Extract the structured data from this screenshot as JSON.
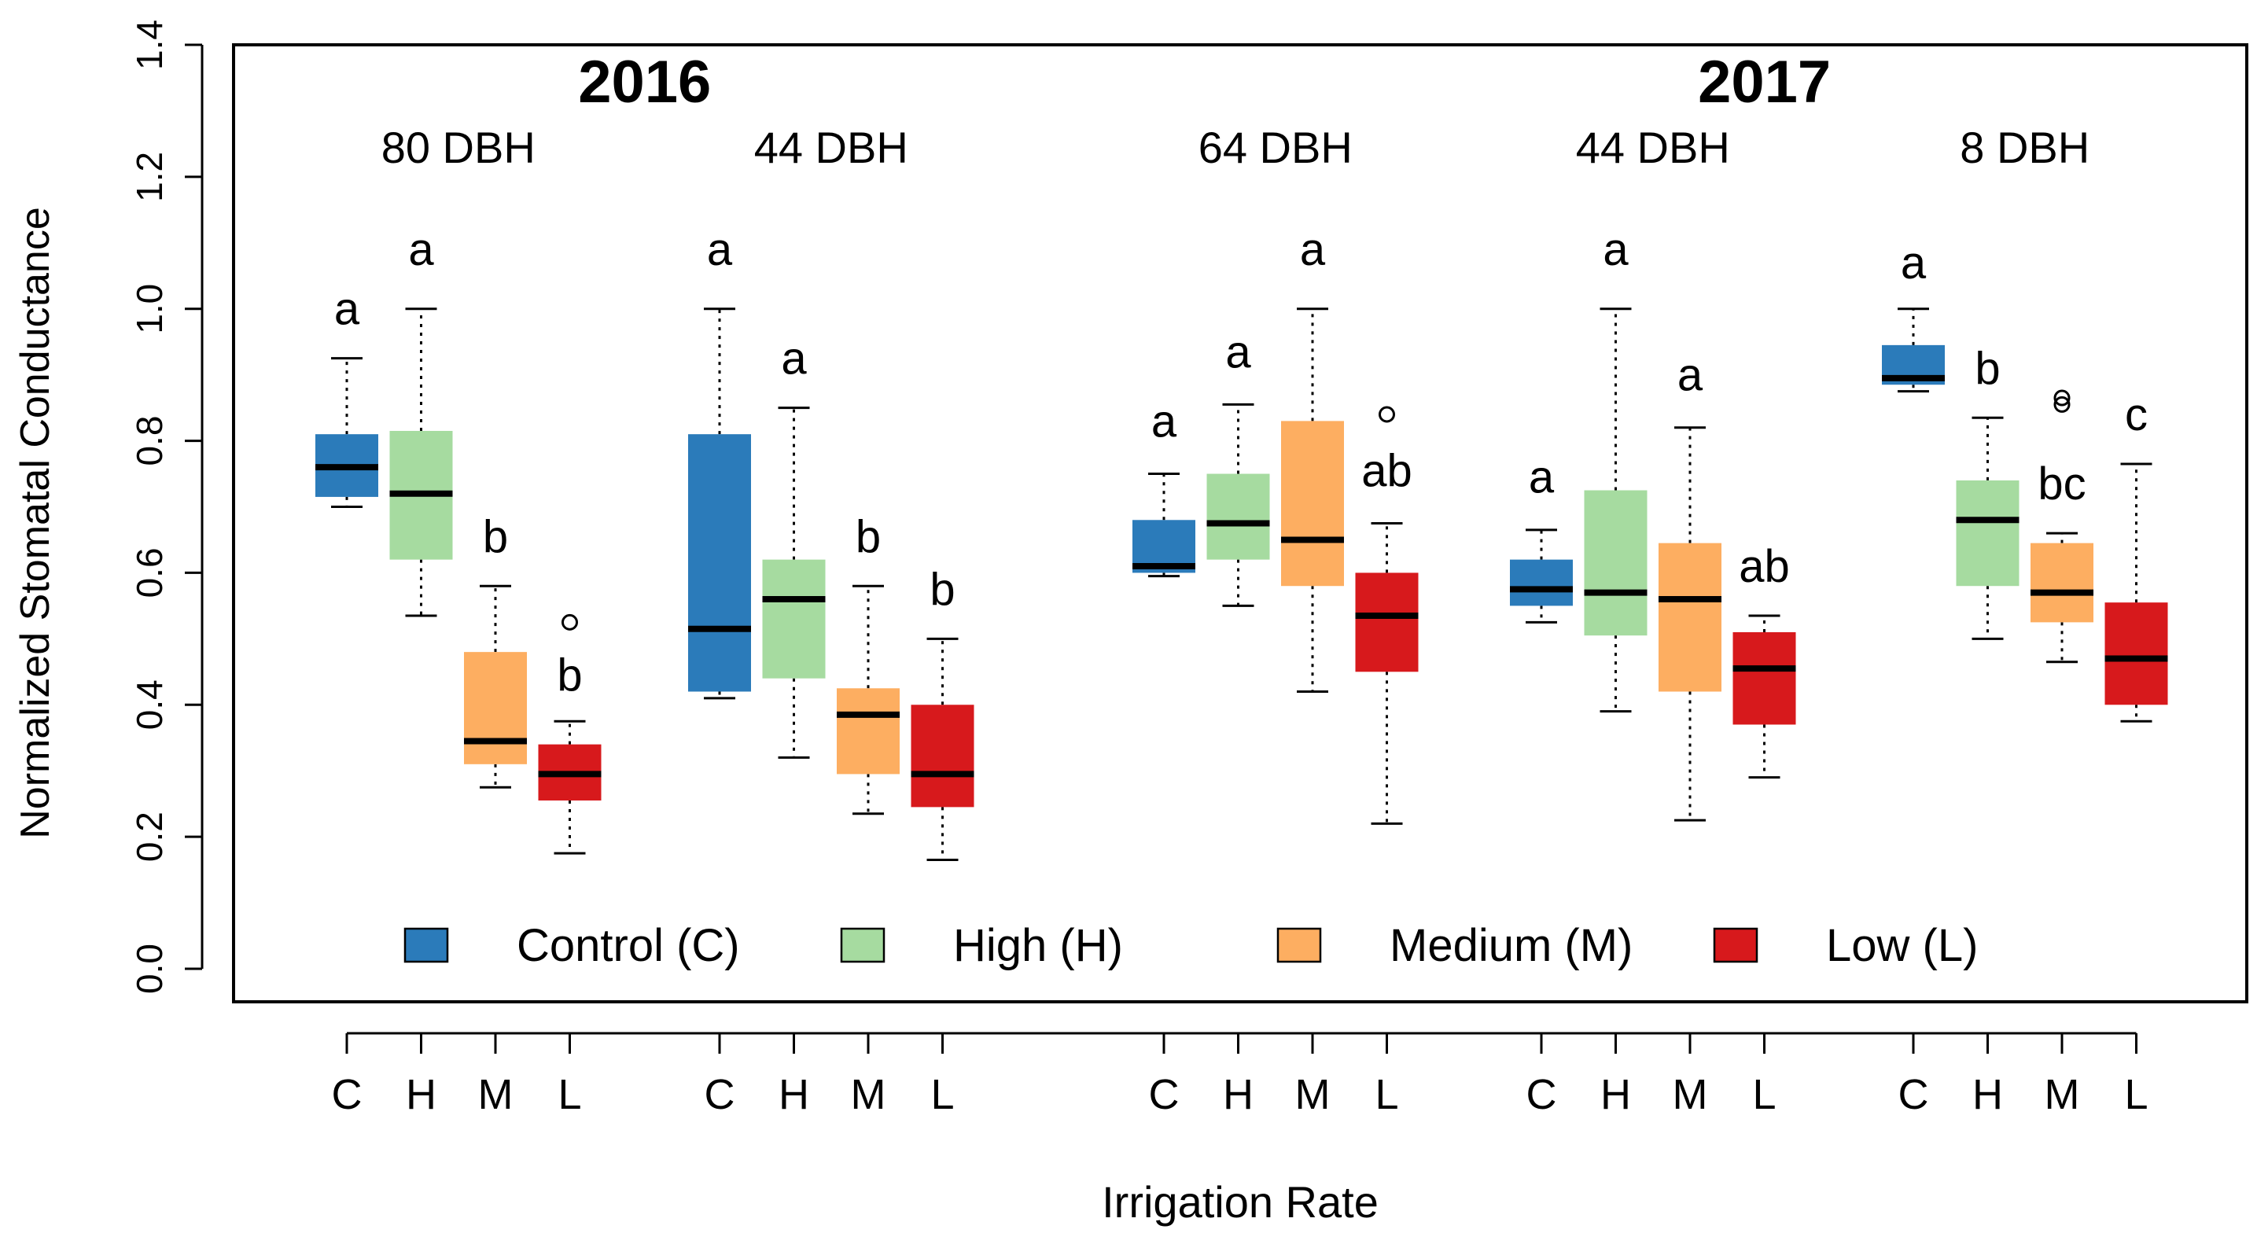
{
  "chart_data": {
    "type": "boxplot",
    "ylabel": "Normalized Stomatal Conductance",
    "xlabel": "Irrigation Rate",
    "ylim": [
      0.0,
      1.4
    ],
    "yticks": [
      "0.0",
      "0.2",
      "0.4",
      "0.6",
      "0.8",
      "1.0",
      "1.2",
      "1.4"
    ],
    "ytick_values": [
      0.0,
      0.2,
      0.4,
      0.6,
      0.8,
      1.0,
      1.2,
      1.4
    ],
    "treatments": [
      {
        "key": "C",
        "name": "Control (C)",
        "color": "#2b7bba"
      },
      {
        "key": "H",
        "name": "High (H)",
        "color": "#a6dba0"
      },
      {
        "key": "M",
        "name": "Medium (M)",
        "color": "#fdae61"
      },
      {
        "key": "L",
        "name": "Low (L)",
        "color": "#d7191c"
      }
    ],
    "years": [
      {
        "label": "2016",
        "center_group": 0.5
      },
      {
        "label": "2017",
        "center_group": 3.3
      }
    ],
    "groups": [
      {
        "label": "80 DBH",
        "year": "2016",
        "boxes": [
          {
            "tick": "C",
            "min": 0.7,
            "q1": 0.715,
            "median": 0.76,
            "q3": 0.81,
            "max": 0.925,
            "outliers": [],
            "letter": "a",
            "letter_y": 1.0
          },
          {
            "tick": "H",
            "min": 0.535,
            "q1": 0.62,
            "median": 0.72,
            "q3": 0.815,
            "max": 1.0,
            "outliers": [],
            "letter": "a",
            "letter_y": 1.09
          },
          {
            "tick": "M",
            "min": 0.275,
            "q1": 0.31,
            "median": 0.345,
            "q3": 0.48,
            "max": 0.58,
            "outliers": [],
            "letter": "b",
            "letter_y": 0.655
          },
          {
            "tick": "L",
            "min": 0.175,
            "q1": 0.255,
            "median": 0.295,
            "q3": 0.34,
            "max": 0.375,
            "outliers": [
              0.525
            ],
            "letter": "b",
            "letter_y": 0.445
          }
        ]
      },
      {
        "label": "44 DBH",
        "year": "2016",
        "boxes": [
          {
            "tick": "C",
            "min": 0.41,
            "q1": 0.42,
            "median": 0.515,
            "q3": 0.81,
            "max": 1.0,
            "outliers": [],
            "letter": "a",
            "letter_y": 1.09
          },
          {
            "tick": "H",
            "min": 0.32,
            "q1": 0.44,
            "median": 0.56,
            "q3": 0.62,
            "max": 0.85,
            "outliers": [],
            "letter": "a",
            "letter_y": 0.925
          },
          {
            "tick": "M",
            "min": 0.235,
            "q1": 0.295,
            "median": 0.385,
            "q3": 0.425,
            "max": 0.58,
            "outliers": [],
            "letter": "b",
            "letter_y": 0.655
          },
          {
            "tick": "L",
            "min": 0.165,
            "q1": 0.245,
            "median": 0.295,
            "q3": 0.4,
            "max": 0.5,
            "outliers": [],
            "letter": "b",
            "letter_y": 0.575
          }
        ]
      },
      {
        "label": "64 DBH",
        "year": "2017",
        "boxes": [
          {
            "tick": "C",
            "min": 0.595,
            "q1": 0.6,
            "median": 0.61,
            "q3": 0.68,
            "max": 0.75,
            "outliers": [],
            "letter": "a",
            "letter_y": 0.83
          },
          {
            "tick": "H",
            "min": 0.55,
            "q1": 0.62,
            "median": 0.675,
            "q3": 0.75,
            "max": 0.855,
            "outliers": [],
            "letter": "a",
            "letter_y": 0.935
          },
          {
            "tick": "M",
            "min": 0.42,
            "q1": 0.58,
            "median": 0.65,
            "q3": 0.83,
            "max": 1.0,
            "outliers": [],
            "letter": "a",
            "letter_y": 1.09
          },
          {
            "tick": "L",
            "min": 0.22,
            "q1": 0.45,
            "median": 0.535,
            "q3": 0.6,
            "max": 0.675,
            "outliers": [
              0.84
            ],
            "letter": "ab",
            "letter_y": 0.755
          }
        ]
      },
      {
        "label": "44 DBH",
        "year": "2017",
        "boxes": [
          {
            "tick": "C",
            "min": 0.525,
            "q1": 0.55,
            "median": 0.575,
            "q3": 0.62,
            "max": 0.665,
            "outliers": [],
            "letter": "a",
            "letter_y": 0.745
          },
          {
            "tick": "H",
            "min": 0.39,
            "q1": 0.505,
            "median": 0.57,
            "q3": 0.725,
            "max": 1.0,
            "outliers": [],
            "letter": "a",
            "letter_y": 1.09
          },
          {
            "tick": "M",
            "min": 0.225,
            "q1": 0.42,
            "median": 0.56,
            "q3": 0.645,
            "max": 0.82,
            "outliers": [],
            "letter": "a",
            "letter_y": 0.9
          },
          {
            "tick": "L",
            "min": 0.29,
            "q1": 0.37,
            "median": 0.455,
            "q3": 0.51,
            "max": 0.535,
            "outliers": [],
            "letter": "ab",
            "letter_y": 0.61
          }
        ]
      },
      {
        "label": "8 DBH",
        "year": "2017",
        "boxes": [
          {
            "tick": "C",
            "min": 0.875,
            "q1": 0.885,
            "median": 0.895,
            "q3": 0.945,
            "max": 1.0,
            "outliers": [],
            "letter": "a",
            "letter_y": 1.07
          },
          {
            "tick": "H",
            "min": 0.5,
            "q1": 0.58,
            "median": 0.68,
            "q3": 0.74,
            "max": 0.835,
            "outliers": [],
            "letter": "b",
            "letter_y": 0.91
          },
          {
            "tick": "M",
            "min": 0.465,
            "q1": 0.525,
            "median": 0.57,
            "q3": 0.645,
            "max": 0.66,
            "outliers": [
              0.855,
              0.865
            ],
            "letter": "bc",
            "letter_y": 0.735
          },
          {
            "tick": "L",
            "min": 0.375,
            "q1": 0.4,
            "median": 0.47,
            "q3": 0.555,
            "max": 0.765,
            "outliers": [],
            "letter": "c",
            "letter_y": 0.84
          }
        ]
      }
    ],
    "legend": {
      "position": "bottom-inside",
      "entries": [
        "Control (C)",
        "High (H)",
        "Medium (M)",
        "Low (L)"
      ]
    }
  }
}
